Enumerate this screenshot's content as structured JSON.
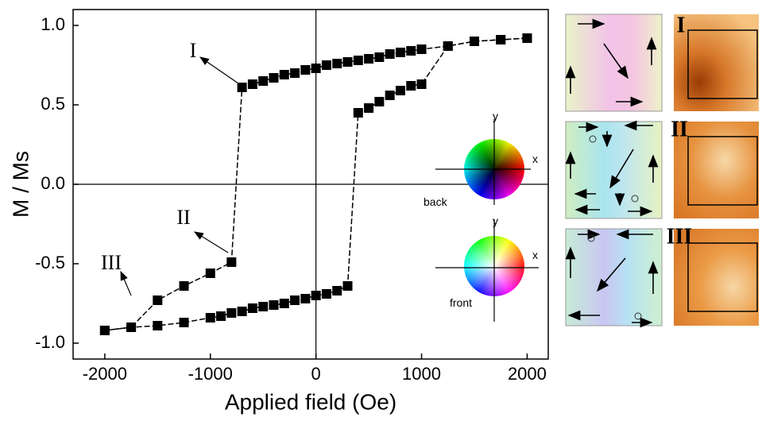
{
  "chart_data": {
    "type": "line",
    "xlabel": "Applied field (Oe)",
    "ylabel": "M / Ms",
    "xlim": [
      -2300,
      2200
    ],
    "ylim": [
      -1.1,
      1.1
    ],
    "xticks": [
      -2000,
      -1000,
      0,
      1000,
      2000
    ],
    "yticks": [
      {
        "value": 1.0,
        "label": "1.0"
      },
      0.5,
      {
        "value": 0.0,
        "label": "0.0"
      },
      -0.5,
      {
        "value": -1.0,
        "label": "-1.0"
      }
    ],
    "series": [
      {
        "color": "#000000",
        "x": [
          2000,
          1750,
          1500,
          1250,
          1000,
          900,
          800,
          700,
          600,
          500,
          400,
          300,
          200,
          100,
          0,
          -100,
          -200,
          -300,
          -400,
          -500,
          -600,
          -700,
          -800,
          -1000,
          -1250,
          -1500,
          -1750,
          -2000
        ],
        "values": [
          0.92,
          0.91,
          0.9,
          0.87,
          0.85,
          0.84,
          0.83,
          0.82,
          0.8,
          0.79,
          0.78,
          0.77,
          0.76,
          0.75,
          0.73,
          0.72,
          0.7,
          0.69,
          0.67,
          0.65,
          0.63,
          0.61,
          -0.49,
          -0.56,
          -0.64,
          -0.73,
          -0.9,
          -0.92
        ]
      },
      {
        "color": "#000000",
        "x": [
          -2000,
          -1750,
          -1500,
          -1250,
          -1000,
          -900,
          -800,
          -700,
          -600,
          -500,
          -400,
          -300,
          -200,
          -100,
          0,
          100,
          200,
          300,
          400,
          500,
          600,
          700,
          800,
          900,
          1000,
          1250,
          1500,
          1750,
          2000
        ],
        "values": [
          -0.92,
          -0.9,
          -0.89,
          -0.87,
          -0.84,
          -0.83,
          -0.81,
          -0.8,
          -0.78,
          -0.77,
          -0.76,
          -0.75,
          -0.73,
          -0.72,
          -0.7,
          -0.69,
          -0.67,
          -0.64,
          0.45,
          0.48,
          0.52,
          0.56,
          0.59,
          0.62,
          0.63,
          0.87,
          0.9,
          0.91,
          0.92
        ]
      }
    ],
    "annotations": [
      "I",
      "II",
      "III"
    ],
    "wheel_labels": {
      "back": {
        "y": "y",
        "x": "x",
        "name": "back"
      },
      "front": {
        "y": "y",
        "x": "x",
        "name": "front"
      }
    }
  },
  "panels": [
    "I",
    "II",
    "III"
  ]
}
